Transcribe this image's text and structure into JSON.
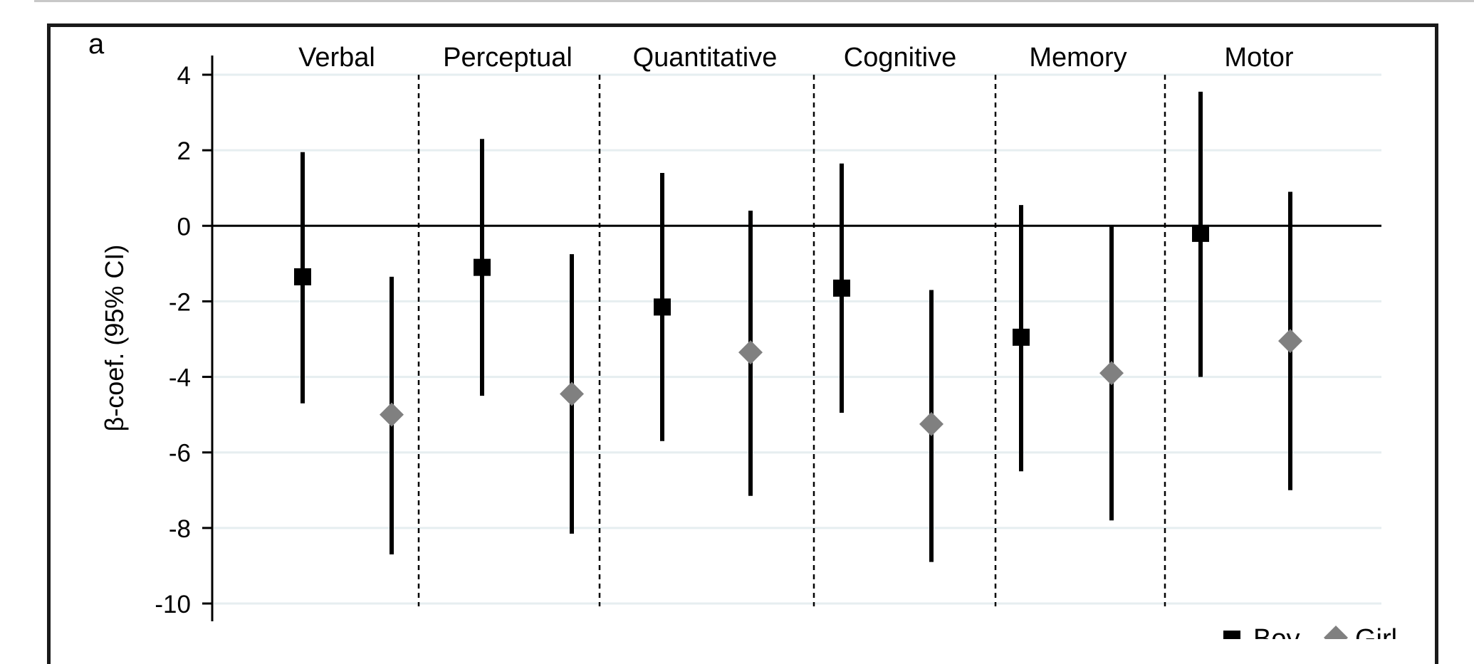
{
  "panel_label": "a",
  "chart_data": {
    "type": "scatter",
    "title": "",
    "xlabel": "",
    "ylabel": "β-coef. (95% CI)",
    "ylim": [
      -10,
      4
    ],
    "yticks": [
      4,
      2,
      0,
      -2,
      -4,
      -6,
      -8,
      -10
    ],
    "ytick_labels": [
      "4",
      "2",
      "0",
      "-2",
      "-4",
      "-6",
      "-8",
      "-10"
    ],
    "grid": true,
    "categories": [
      "Verbal",
      "Perceptual",
      "Quantitative",
      "Cognitive",
      "Memory",
      "Motor"
    ],
    "legend": {
      "placement": "bottom-right",
      "entries": [
        "Boy",
        "Girl"
      ]
    },
    "series": [
      {
        "name": "Boy",
        "marker": "square",
        "color": "#000000",
        "values": [
          -1.35,
          -1.1,
          -2.15,
          -1.65,
          -2.95,
          -0.2
        ],
        "ci_low": [
          -4.7,
          -4.5,
          -5.7,
          -4.95,
          -6.5,
          -4.0
        ],
        "ci_high": [
          1.95,
          2.3,
          1.4,
          1.65,
          0.55,
          3.55
        ]
      },
      {
        "name": "Girl",
        "marker": "diamond",
        "color": "#808080",
        "values": [
          -5.0,
          -4.45,
          -3.35,
          -5.25,
          -3.9,
          -3.05
        ],
        "ci_low": [
          -8.7,
          -8.15,
          -7.15,
          -8.9,
          -7.8,
          -7.0
        ],
        "ci_high": [
          -1.35,
          -0.75,
          0.4,
          -1.7,
          0.0,
          0.9
        ]
      }
    ]
  }
}
